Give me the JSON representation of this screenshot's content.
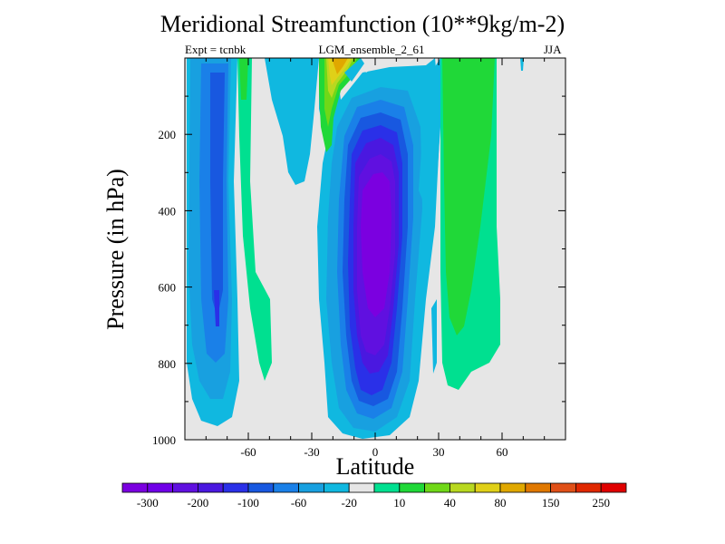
{
  "chart_data": {
    "type": "contour",
    "title": "Meridional Streamfunction (10**9kg/m-2)",
    "subtitle_left": "Expt = tcnbk",
    "subtitle_center": "LGM_ensemble_2_61",
    "subtitle_right": "JJA",
    "xlabel": "Latitude",
    "ylabel": "Pressure (in hPa)",
    "xlim": [
      -90,
      90
    ],
    "ylim": [
      1000,
      0
    ],
    "x_ticks": [
      -60,
      -30,
      0,
      30,
      60
    ],
    "x_tick_labels": [
      "-60",
      "-30",
      "0",
      "30",
      "60"
    ],
    "y_ticks": [
      200,
      400,
      600,
      800,
      1000
    ],
    "y_tick_labels": [
      "200",
      "400",
      "600",
      "800",
      "1000"
    ],
    "colorbar": {
      "colors": [
        "#7b00e0",
        "#7000e8",
        "#6010e0",
        "#4a18e0",
        "#2a30e8",
        "#1858e0",
        "#1a80e8",
        "#18a0e0",
        "#10b8e0",
        "#e6e6e6",
        "#00e090",
        "#20d838",
        "#70d818",
        "#b8d820",
        "#e0d018",
        "#e0a800",
        "#e07800",
        "#e05018",
        "#e02800",
        "#e00000"
      ],
      "tick_labels": [
        "-300",
        "-200",
        "-100",
        "-60",
        "-20",
        "10",
        "40",
        "80",
        "150",
        "250"
      ]
    },
    "features": [
      {
        "name": "southern-hemisphere-negative-cell",
        "lat_range": [
          -80,
          -55
        ],
        "pressure_range": [
          10,
          970
        ],
        "min_value": -100
      },
      {
        "name": "tropical-negative-cell",
        "lat_range": [
          -20,
          15
        ],
        "pressure_range": [
          70,
          990
        ],
        "min_value": -300
      },
      {
        "name": "northern-positive-cell",
        "lat_range": [
          30,
          55
        ],
        "pressure_range": [
          10,
          850
        ],
        "max_value": 40
      },
      {
        "name": "upper-level-positive-max",
        "lat_range": [
          -25,
          -10
        ],
        "pressure_range": [
          10,
          230
        ],
        "max_value": 150
      }
    ]
  }
}
